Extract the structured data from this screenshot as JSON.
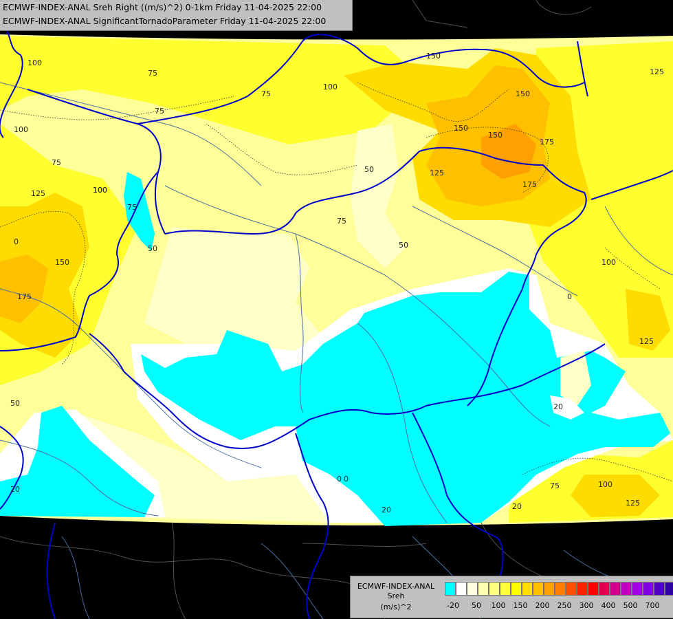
{
  "header": {
    "line1": "ECMWF-INDEX-ANAL Sreh Right ((m/s)^2) 0-1km Friday 11-04-2025 22:00",
    "line2": "ECMWF-INDEX-ANAL SignificantTornadoParameter Friday 11-04-2025 22:00"
  },
  "legend": {
    "title_line1": "ECMWF-INDEX-ANAL",
    "title_line2": "Sreh",
    "title_line3": "(m/s)^2",
    "swatch_colors": [
      "#00ffff",
      "#ffffff",
      "#ffffdf",
      "#ffffb0",
      "#ffff80",
      "#ffff40",
      "#ffff00",
      "#ffe000",
      "#ffc000",
      "#ffa000",
      "#ff8000",
      "#ff5000",
      "#ff2000",
      "#ff0000",
      "#e00050",
      "#d0008f",
      "#c000c0",
      "#a000e0",
      "#8000e0",
      "#5000c0",
      "#3000a0",
      "#000080"
    ],
    "ticks": [
      "-20",
      "50",
      "100",
      "150",
      "200",
      "250",
      "300",
      "400",
      "500",
      "700"
    ]
  },
  "contour_labels": [
    "100",
    "75",
    "75",
    "100",
    "125",
    "75",
    "100",
    "150",
    "175",
    "50",
    "75",
    "50",
    "150",
    "125",
    "150",
    "175",
    "150",
    "100",
    "75",
    "50",
    "0",
    "0",
    "20",
    "20",
    "20",
    "0",
    "100",
    "75",
    "125",
    "75",
    "50",
    "100",
    "125",
    "150",
    "175",
    "125",
    "100",
    "0",
    "20"
  ],
  "colors": {
    "cyan": "#00ffff",
    "white": "#ffffff",
    "pale": "#ffffc8",
    "light_yellow": "#ffff9a",
    "yellow": "#ffff00",
    "gold": "#ffdc00",
    "orange_light": "#ffc000",
    "orange": "#ffa000",
    "outside": "#000000",
    "border": "#0000cc",
    "river": "#4a6fa0"
  }
}
